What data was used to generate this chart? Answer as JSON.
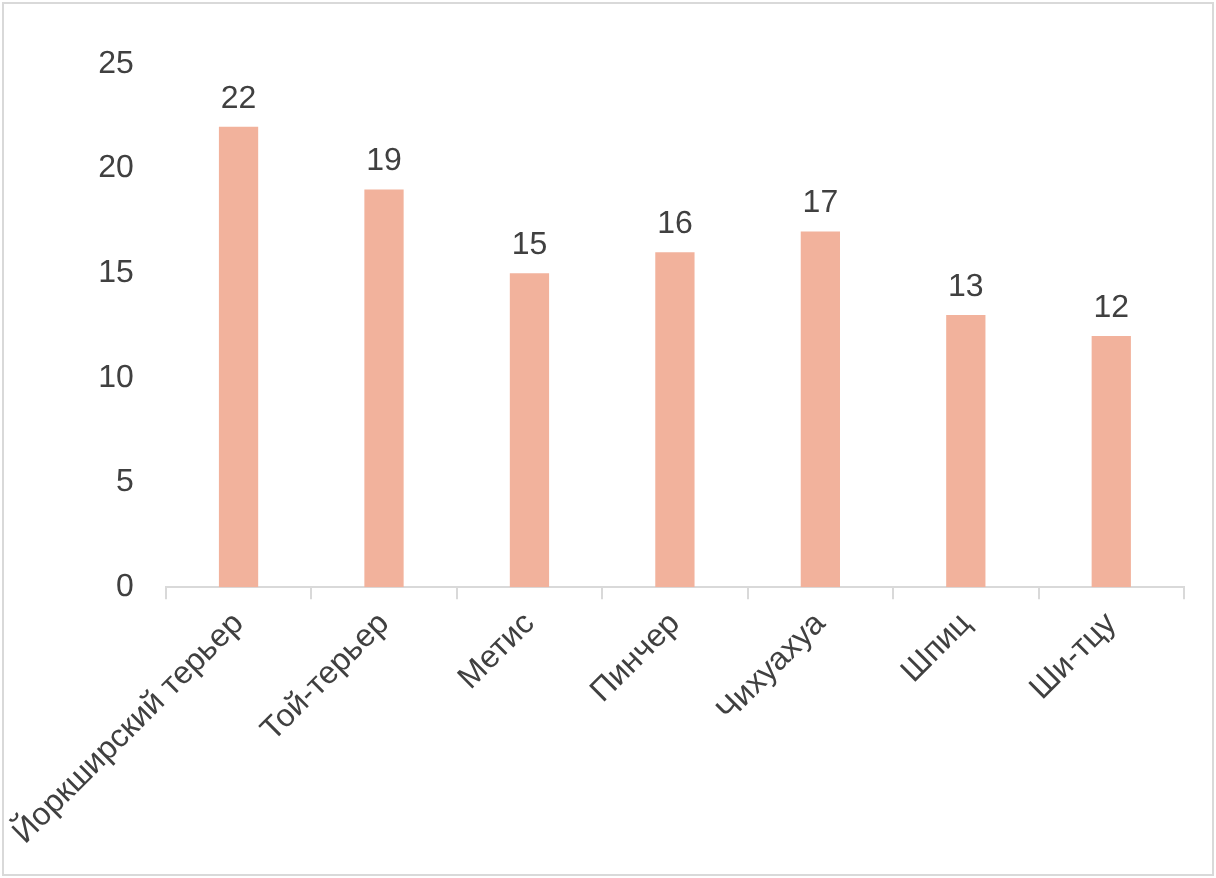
{
  "chart_data": {
    "type": "bar",
    "categories": [
      "Йоркширский терьер",
      "Той-терьер",
      "Метис",
      "Пинчер",
      "Чихуахуа",
      "Шпиц",
      "Ши-тцу"
    ],
    "values": [
      22,
      19,
      15,
      16,
      17,
      13,
      12
    ],
    "color": "#f2b29c",
    "ylim": [
      0,
      25
    ],
    "yticks": [
      0,
      5,
      10,
      15,
      20,
      25
    ],
    "grid": false,
    "legend": false,
    "data_labels": true
  }
}
